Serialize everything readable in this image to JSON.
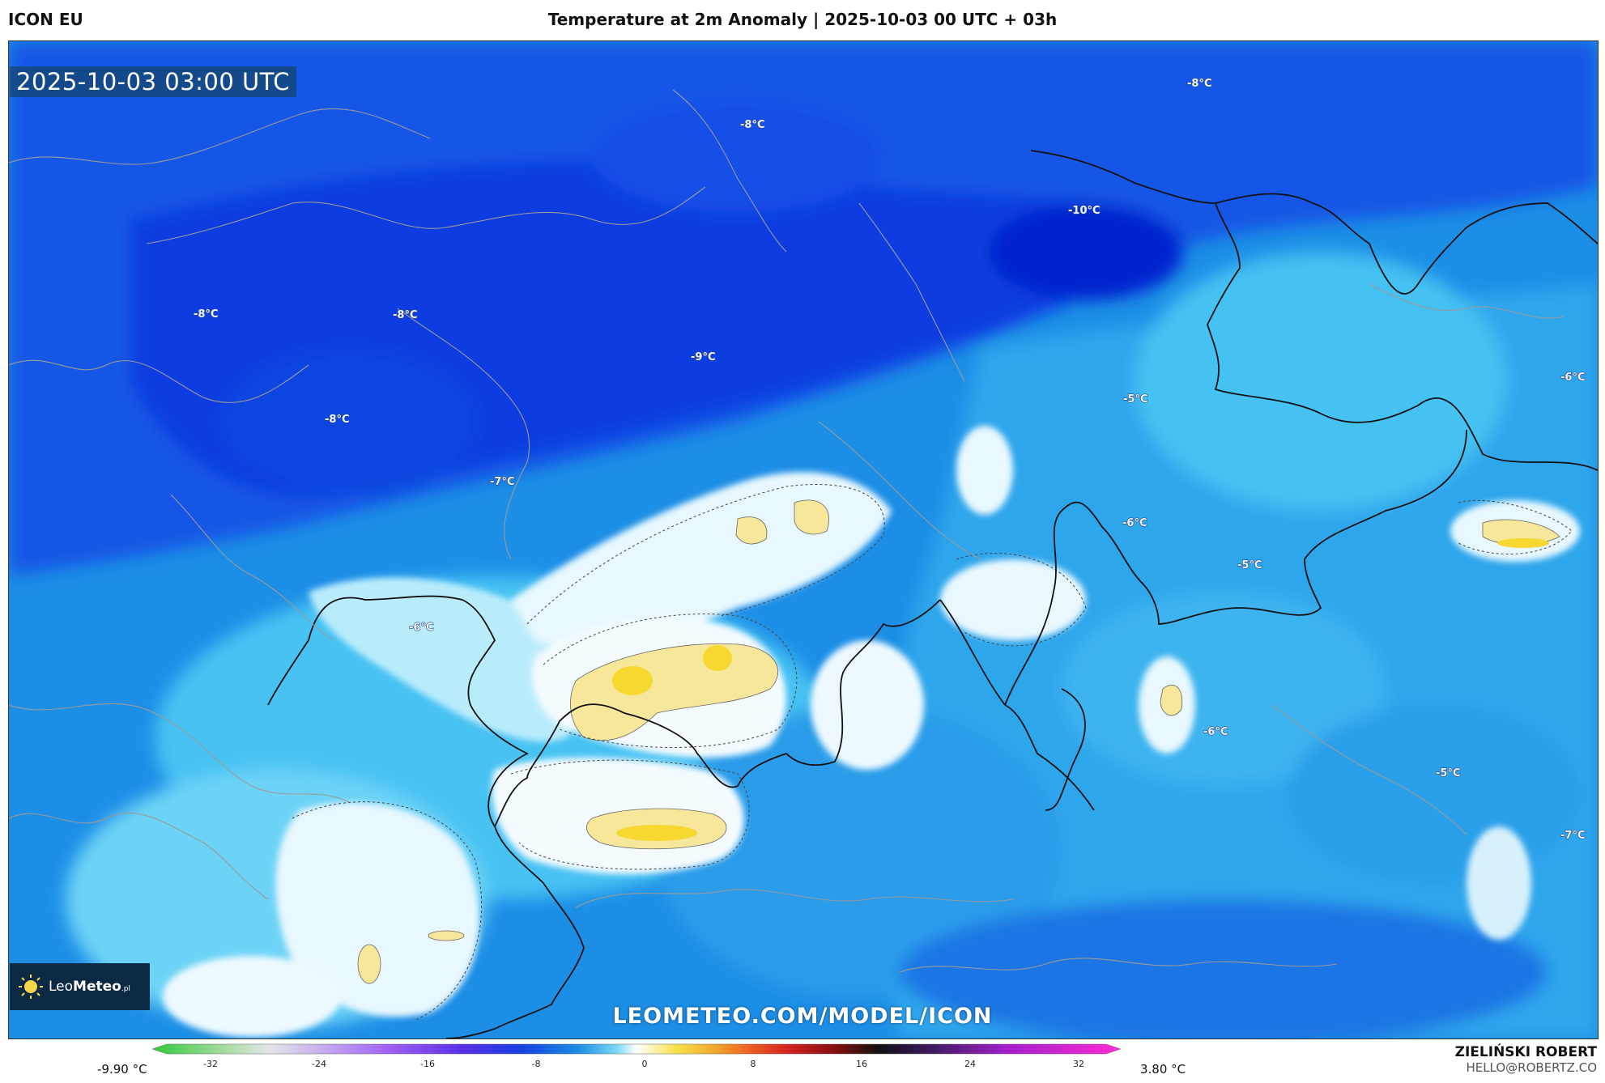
{
  "header": {
    "model": "ICON EU",
    "title": "Temperature at 2m Anomaly | 2025-10-03 00 UTC + 03h"
  },
  "map": {
    "timestamp": "2025-10-03 03:00 UTC",
    "watermark": "LEOMETEO.COM/MODEL/ICON",
    "labels": [
      {
        "text": "-8°C"
      },
      {
        "text": "-8°C"
      },
      {
        "text": "-10°C"
      },
      {
        "text": "-8°C"
      },
      {
        "text": "-8°C"
      },
      {
        "text": "-9°C"
      },
      {
        "text": "-8°C"
      },
      {
        "text": "-7°C"
      },
      {
        "text": "-5°C"
      },
      {
        "text": "-6°C"
      },
      {
        "text": "-6°C"
      },
      {
        "text": "-5°C"
      },
      {
        "text": "-6°C"
      },
      {
        "text": "-6°C"
      },
      {
        "text": "-5°C"
      },
      {
        "text": "-7°C"
      }
    ]
  },
  "logo": {
    "brand_light": "Leo",
    "brand_bold": "Meteo",
    "suffix": ".pl"
  },
  "colorbar": {
    "min_label": "-9.90 °C",
    "max_label": "3.80 °C",
    "ticks": [
      "-32",
      "-24",
      "-16",
      "-8",
      "0",
      "8",
      "16",
      "24",
      "32"
    ],
    "colors": {
      "cold_green": "#2fc93a",
      "neutral_white": "#ffffff",
      "warm_yellow": "#f7e34a",
      "hot_magenta": "#ff2bd6"
    }
  },
  "credit": {
    "name": "ZIELIŃSKI ROBERT",
    "email": "HELLO@ROBERTZ.CO"
  }
}
